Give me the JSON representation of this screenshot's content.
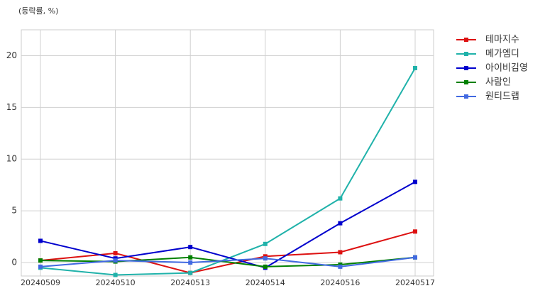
{
  "chart_data": {
    "type": "line",
    "subtitle": "(등락률, %)",
    "categories": [
      "20240509",
      "20240510",
      "20240513",
      "20240514",
      "20240516",
      "20240517"
    ],
    "series": [
      {
        "name": "테마지수",
        "color": "#dd1111",
        "values": [
          0.2,
          0.9,
          -1.0,
          0.6,
          1.0,
          3.0
        ]
      },
      {
        "name": "메가엠디",
        "color": "#20b2aa",
        "values": [
          -0.5,
          -1.2,
          -1.0,
          1.8,
          6.2,
          18.8
        ]
      },
      {
        "name": "아이비김영",
        "color": "#0000cd",
        "values": [
          2.1,
          0.4,
          1.5,
          -0.5,
          3.8,
          7.8
        ]
      },
      {
        "name": "사람인",
        "color": "#008000",
        "values": [
          0.2,
          0.1,
          0.5,
          -0.4,
          -0.2,
          0.5
        ]
      },
      {
        "name": "원티드랩",
        "color": "#4169e1",
        "values": [
          -0.4,
          0.2,
          0.0,
          0.4,
          -0.4,
          0.5
        ]
      }
    ],
    "ylim": [
      -1.3,
      22.5
    ],
    "yticks": [
      0,
      5,
      10,
      15,
      20
    ],
    "grid": true,
    "legend": "outside-right"
  }
}
